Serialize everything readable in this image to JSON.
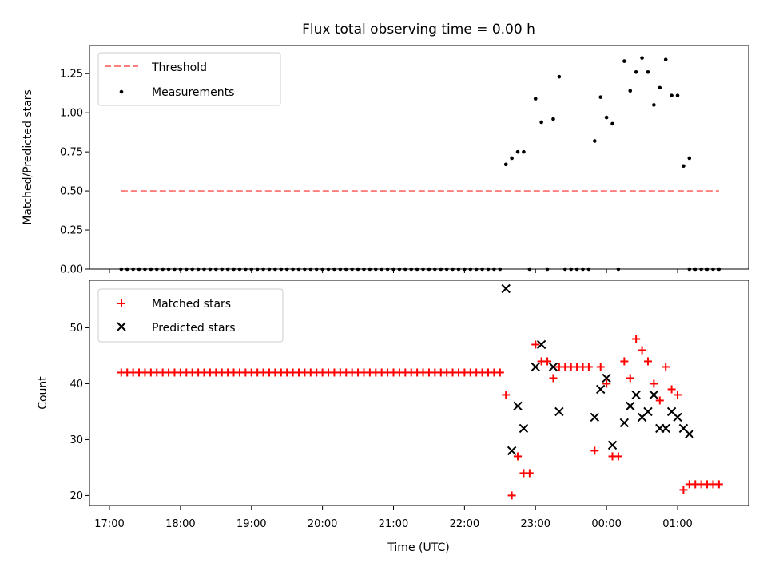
{
  "chart_data": [
    {
      "type": "scatter",
      "title": "Flux total observing time = 0.00 h",
      "xlabel": "",
      "ylabel": "Matched/Predicted stars",
      "ylim": [
        0,
        1.43
      ],
      "yticks": [
        "0.00",
        "0.25",
        "0.50",
        "0.75",
        "1.00",
        "1.25"
      ],
      "grid": false,
      "legend_position": "top-left",
      "legend": [
        {
          "label": "Threshold",
          "style": "dashed-line",
          "color": "#ff7f7f"
        },
        {
          "label": "Measurements",
          "style": "dot",
          "color": "#000000"
        }
      ],
      "threshold": {
        "name": "Threshold",
        "value": 0.5,
        "x_start": "17:10",
        "x_end": "01:35"
      },
      "zero_runs": [
        {
          "start": "17:10",
          "end": "22:30",
          "step_minutes": 5
        },
        {
          "start": "01:10",
          "end": "01:35",
          "step_minutes": 5
        }
      ],
      "series": [
        {
          "name": "Measurements",
          "color": "#000000",
          "points": [
            [
              "22:35",
              0.67
            ],
            [
              "22:40",
              0.71
            ],
            [
              "22:45",
              0.75
            ],
            [
              "22:50",
              0.75
            ],
            [
              "22:55",
              0.0
            ],
            [
              "23:00",
              1.09
            ],
            [
              "23:05",
              0.94
            ],
            [
              "23:10",
              0.0
            ],
            [
              "23:15",
              0.96
            ],
            [
              "23:20",
              1.23
            ],
            [
              "23:25",
              0.0
            ],
            [
              "23:30",
              0.0
            ],
            [
              "23:35",
              0.0
            ],
            [
              "23:40",
              0.0
            ],
            [
              "23:45",
              0.0
            ],
            [
              "23:50",
              0.82
            ],
            [
              "23:55",
              1.1
            ],
            [
              "00:00",
              0.97
            ],
            [
              "00:05",
              0.93
            ],
            [
              "00:10",
              0.0
            ],
            [
              "00:15",
              1.33
            ],
            [
              "00:20",
              1.14
            ],
            [
              "00:25",
              1.26
            ],
            [
              "00:30",
              1.35
            ],
            [
              "00:35",
              1.26
            ],
            [
              "00:40",
              1.05
            ],
            [
              "00:45",
              1.16
            ],
            [
              "00:50",
              1.34
            ],
            [
              "00:55",
              1.11
            ],
            [
              "01:00",
              1.11
            ],
            [
              "01:05",
              0.66
            ],
            [
              "01:10",
              0.71
            ]
          ]
        }
      ]
    },
    {
      "type": "scatter",
      "title": "",
      "xlabel": "Time (UTC)",
      "ylabel": "Count",
      "ylim": [
        18.2,
        58.5
      ],
      "yticks": [
        "20",
        "30",
        "40",
        "50"
      ],
      "xticks": [
        "17:00",
        "18:00",
        "19:00",
        "20:00",
        "21:00",
        "22:00",
        "23:00",
        "00:00",
        "01:00"
      ],
      "grid": false,
      "legend_position": "top-left",
      "legend": [
        {
          "label": "Matched stars",
          "marker": "plus",
          "color": "#ff0000"
        },
        {
          "label": "Predicted stars",
          "marker": "x",
          "color": "#000000"
        }
      ],
      "matched_constant_runs": [
        {
          "start": "17:10",
          "end": "22:30",
          "step_minutes": 5,
          "value": 42
        },
        {
          "start": "01:10",
          "end": "01:35",
          "step_minutes": 5,
          "value": 22
        }
      ],
      "series": [
        {
          "name": "Matched stars",
          "color": "#ff0000",
          "points": [
            [
              "22:35",
              38
            ],
            [
              "22:40",
              20
            ],
            [
              "22:45",
              27
            ],
            [
              "22:50",
              24
            ],
            [
              "22:55",
              24
            ],
            [
              "23:00",
              47
            ],
            [
              "23:05",
              44
            ],
            [
              "23:10",
              44
            ],
            [
              "23:15",
              41
            ],
            [
              "23:20",
              43
            ],
            [
              "23:25",
              43
            ],
            [
              "23:30",
              43
            ],
            [
              "23:35",
              43
            ],
            [
              "23:40",
              43
            ],
            [
              "23:45",
              43
            ],
            [
              "23:50",
              28
            ],
            [
              "23:55",
              43
            ],
            [
              "00:00",
              40
            ],
            [
              "00:05",
              27
            ],
            [
              "00:10",
              27
            ],
            [
              "00:15",
              44
            ],
            [
              "00:20",
              41
            ],
            [
              "00:25",
              48
            ],
            [
              "00:30",
              46
            ],
            [
              "00:35",
              44
            ],
            [
              "00:40",
              40
            ],
            [
              "00:45",
              37
            ],
            [
              "00:50",
              43
            ],
            [
              "00:55",
              39
            ],
            [
              "01:00",
              38
            ],
            [
              "01:05",
              21
            ]
          ]
        },
        {
          "name": "Predicted stars",
          "color": "#000000",
          "points": [
            [
              "22:35",
              57
            ],
            [
              "22:40",
              28
            ],
            [
              "22:45",
              36
            ],
            [
              "22:50",
              32
            ],
            [
              "23:00",
              43
            ],
            [
              "23:05",
              47
            ],
            [
              "23:15",
              43
            ],
            [
              "23:20",
              35
            ],
            [
              "23:50",
              34
            ],
            [
              "23:55",
              39
            ],
            [
              "00:00",
              41
            ],
            [
              "00:05",
              29
            ],
            [
              "00:15",
              33
            ],
            [
              "00:20",
              36
            ],
            [
              "00:25",
              38
            ],
            [
              "00:30",
              34
            ],
            [
              "00:35",
              35
            ],
            [
              "00:40",
              38
            ],
            [
              "00:45",
              32
            ],
            [
              "00:50",
              32
            ],
            [
              "00:55",
              35
            ],
            [
              "01:00",
              34
            ],
            [
              "01:05",
              32
            ],
            [
              "01:10",
              31
            ]
          ]
        }
      ]
    }
  ]
}
